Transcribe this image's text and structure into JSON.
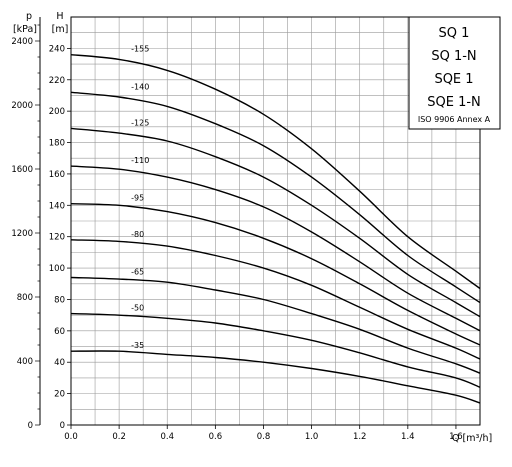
{
  "chart_data": {
    "type": "line",
    "xlabel": "Q [m³/h]",
    "ylabel": "H [m]",
    "ylabel_unit": "[m]",
    "ylabel_symbol": "H",
    "y2label_symbol": "p",
    "y2label_unit": "[kPa]",
    "xlim": [
      0,
      1.7
    ],
    "ylim": [
      0,
      260
    ],
    "y2lim": [
      0,
      2550
    ],
    "grid": true,
    "x_ticks": [
      "0.0",
      "0.2",
      "0.4",
      "0.6",
      "0.8",
      "1.0",
      "1.2",
      "1.4",
      "1.6"
    ],
    "y_ticks": [
      "0",
      "20",
      "40",
      "60",
      "80",
      "100",
      "120",
      "140",
      "160",
      "180",
      "200",
      "220",
      "240"
    ],
    "y2_ticks": [
      "0",
      "400",
      "800",
      "1200",
      "1600",
      "2000",
      "2400"
    ],
    "legend": {
      "placement": "top-right",
      "lines": [
        "SQ 1",
        "SQ 1-N",
        "SQE 1",
        "SQE 1-N"
      ],
      "note": "ISO 9906 Annex A"
    },
    "series": [
      {
        "name": "-155",
        "x": [
          0,
          0.2,
          0.4,
          0.6,
          0.8,
          1.0,
          1.2,
          1.4,
          1.6,
          1.7
        ],
        "y": [
          236,
          233,
          226,
          214,
          198,
          176,
          149,
          120,
          98,
          87
        ]
      },
      {
        "name": "-140",
        "x": [
          0,
          0.2,
          0.4,
          0.6,
          0.8,
          1.0,
          1.2,
          1.4,
          1.6,
          1.7
        ],
        "y": [
          212,
          209,
          203,
          192,
          178,
          158,
          134,
          108,
          88,
          78
        ]
      },
      {
        "name": "-125",
        "x": [
          0,
          0.2,
          0.4,
          0.6,
          0.8,
          1.0,
          1.2,
          1.4,
          1.6,
          1.7
        ],
        "y": [
          189,
          186,
          181,
          171,
          158,
          140,
          119,
          96,
          78,
          69
        ]
      },
      {
        "name": "-110",
        "x": [
          0,
          0.2,
          0.4,
          0.6,
          0.8,
          1.0,
          1.2,
          1.4,
          1.6,
          1.7
        ],
        "y": [
          165,
          163,
          158,
          150,
          139,
          123,
          104,
          84,
          68,
          60
        ]
      },
      {
        "name": "-95",
        "x": [
          0,
          0.2,
          0.4,
          0.6,
          0.8,
          1.0,
          1.2,
          1.4,
          1.6,
          1.7
        ],
        "y": [
          141,
          140,
          136,
          129,
          119,
          106,
          90,
          73,
          58,
          51
        ]
      },
      {
        "name": "-80",
        "x": [
          0,
          0.2,
          0.4,
          0.6,
          0.8,
          1.0,
          1.2,
          1.4,
          1.6,
          1.7
        ],
        "y": [
          118,
          117,
          114,
          108,
          100,
          89,
          75,
          61,
          49,
          42
        ]
      },
      {
        "name": "-65",
        "x": [
          0,
          0.2,
          0.4,
          0.6,
          0.8,
          1.0,
          1.2,
          1.4,
          1.6,
          1.7
        ],
        "y": [
          94,
          93,
          91,
          86,
          80,
          71,
          61,
          49,
          39,
          33
        ]
      },
      {
        "name": "-50",
        "x": [
          0,
          0.2,
          0.4,
          0.6,
          0.8,
          1.0,
          1.2,
          1.4,
          1.6,
          1.7
        ],
        "y": [
          71,
          70,
          68,
          65,
          60,
          54,
          46,
          37,
          30,
          24
        ]
      },
      {
        "name": "-35",
        "x": [
          0,
          0.2,
          0.4,
          0.6,
          0.8,
          1.0,
          1.2,
          1.4,
          1.6,
          1.7
        ],
        "y": [
          47,
          47,
          45,
          43,
          40,
          36,
          31,
          25,
          19,
          14
        ]
      }
    ]
  }
}
